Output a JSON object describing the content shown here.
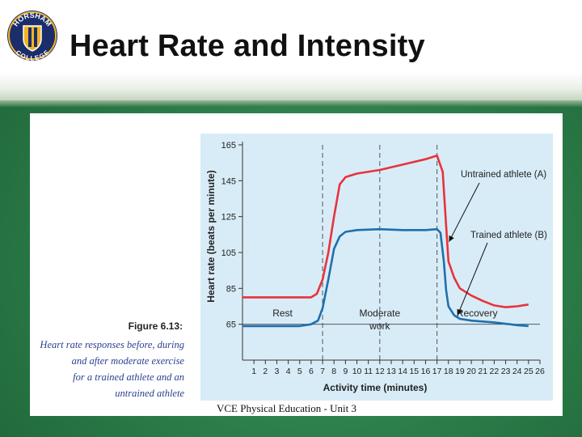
{
  "slide": {
    "title": "Heart Rate and Intensity",
    "footer": "VCE Physical Education - Unit 3",
    "logo": {
      "top_text": "HORSHAM",
      "bottom_text": "COLLEGE"
    }
  },
  "figure": {
    "label": "Figure 6.13:",
    "caption_lines": [
      "Heart rate responses before, during",
      "and after moderate exercise",
      "for a trained athlete and an",
      "untrained athlete"
    ]
  },
  "colors": {
    "series_a": "#e8323c",
    "series_b": "#1f6fae",
    "plot_bg": "#d8ecf7",
    "caption_text": "#2a3f8f"
  },
  "chart_data": {
    "type": "line",
    "title": "",
    "xlabel": "Activity time (minutes)",
    "ylabel": "Heart rate (beats per minute)",
    "xlim": [
      0,
      26
    ],
    "ylim": [
      45,
      165
    ],
    "x_ticks": [
      "1",
      "2",
      "3",
      "4",
      "5",
      "6",
      "7",
      "8",
      "9",
      "10",
      "11",
      "12",
      "13",
      "14",
      "15",
      "16",
      "17",
      "18",
      "19",
      "20",
      "21",
      "22",
      "23",
      "24",
      "25",
      "26"
    ],
    "y_ticks": [
      "165",
      "145",
      "125",
      "105",
      "85",
      "65"
    ],
    "phase_markers": [
      7,
      12,
      17
    ],
    "phases": [
      {
        "label": [
          "Rest"
        ],
        "x": 3.5
      },
      {
        "label": [
          "Moderate",
          "work"
        ],
        "x": 12
      },
      {
        "label": [
          "Recovery"
        ],
        "x": 20.5
      }
    ],
    "series": [
      {
        "name": "Untrained athlete (A)",
        "points": [
          [
            0,
            80
          ],
          [
            6,
            80
          ],
          [
            6.5,
            82
          ],
          [
            7,
            90
          ],
          [
            7.5,
            105
          ],
          [
            8,
            125
          ],
          [
            8.5,
            143
          ],
          [
            9,
            147
          ],
          [
            10,
            149
          ],
          [
            12,
            151
          ],
          [
            14,
            154
          ],
          [
            16,
            157
          ],
          [
            17,
            159
          ],
          [
            17.5,
            150
          ],
          [
            17.8,
            120
          ],
          [
            18,
            100
          ],
          [
            18.5,
            91
          ],
          [
            19,
            85
          ],
          [
            20,
            81
          ],
          [
            21,
            78
          ],
          [
            22,
            75.5
          ],
          [
            23,
            74.5
          ],
          [
            24,
            75
          ],
          [
            25,
            76
          ]
        ]
      },
      {
        "name": "Trained athlete (B)",
        "points": [
          [
            0,
            64
          ],
          [
            5,
            64
          ],
          [
            6,
            65
          ],
          [
            6.6,
            67
          ],
          [
            7,
            74
          ],
          [
            7.5,
            90
          ],
          [
            8,
            107
          ],
          [
            8.5,
            114
          ],
          [
            9,
            116.5
          ],
          [
            10,
            117.5
          ],
          [
            12,
            118
          ],
          [
            14,
            117.5
          ],
          [
            16,
            117.5
          ],
          [
            17,
            118
          ],
          [
            17.3,
            116
          ],
          [
            17.6,
            100
          ],
          [
            17.8,
            84
          ],
          [
            18,
            75
          ],
          [
            18.5,
            70
          ],
          [
            19,
            68
          ],
          [
            20,
            67
          ],
          [
            22,
            66
          ],
          [
            24,
            64.5
          ],
          [
            25,
            64
          ]
        ]
      }
    ],
    "grid": false,
    "legend": "direct labels with arrows at right"
  }
}
